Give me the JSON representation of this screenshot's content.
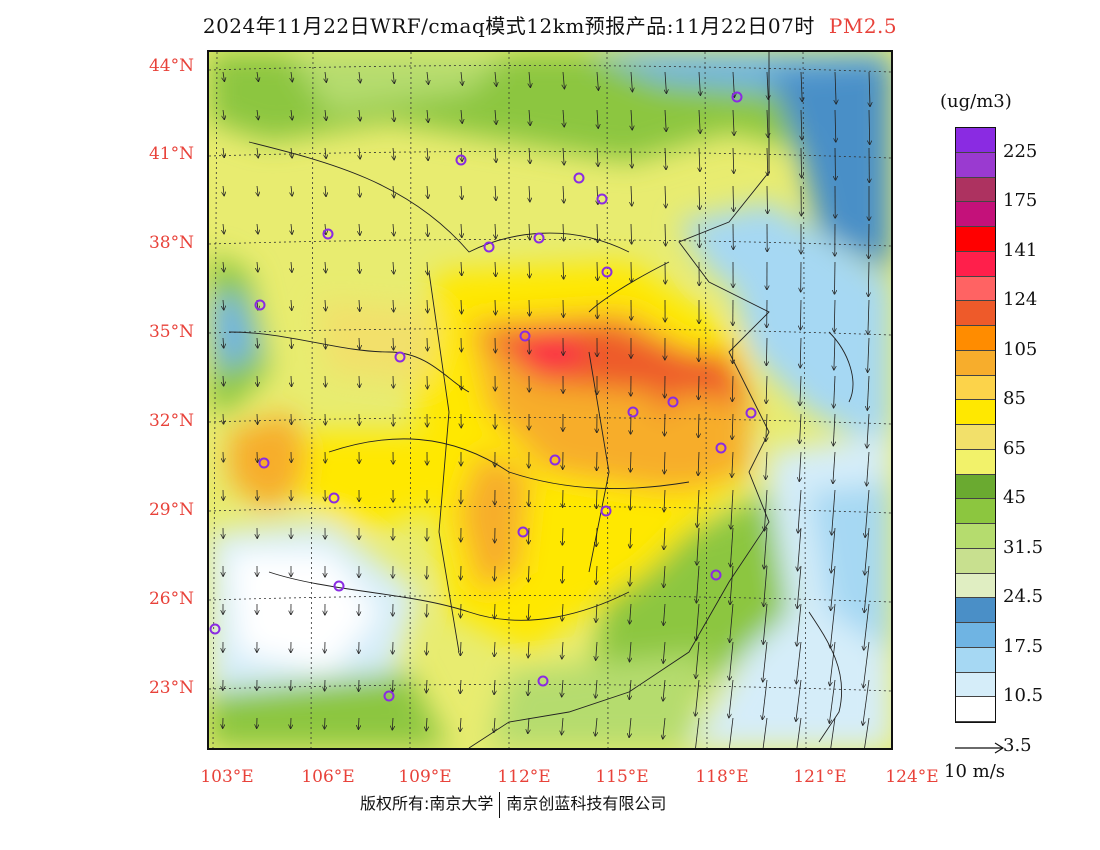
{
  "title": {
    "main": "2024年11月22日WRF/cmaq模式12km预报产品:11月22日07时",
    "species": "PM2.5"
  },
  "legend": {
    "unit": "(ug/m3)",
    "labels": [
      "225",
      "175",
      "141",
      "124",
      "105",
      "85",
      "65",
      "45",
      "31.5",
      "24.5",
      "17.5",
      "10.5",
      "3.5"
    ],
    "colors": [
      "#8a2be2",
      "#9a3ad0",
      "#ad3260",
      "#c4117a",
      "#ff0000",
      "#ff1f4b",
      "#ff6363",
      "#ee5a2a",
      "#ff8c00",
      "#f7ad2c",
      "#fcd34a",
      "#ffe800",
      "#f2e06a",
      "#f2f26a",
      "#6aaa30",
      "#8cc63f",
      "#b5dc6e",
      "#c8e08f",
      "#e0eec2",
      "#4a8fc7",
      "#6fb4e3",
      "#a6d8f3",
      "#d5edf9",
      "#ffffff"
    ]
  },
  "axes": {
    "lat_labels": [
      "44°N",
      "41°N",
      "38°N",
      "35°N",
      "32°N",
      "29°N",
      "26°N",
      "23°N"
    ],
    "lon_labels": [
      "103°E",
      "106°E",
      "109°E",
      "112°E",
      "115°E",
      "118°E",
      "121°E",
      "124°E"
    ]
  },
  "wind": {
    "scale_label": "10 m/s"
  },
  "cities_count_note": "",
  "copyright": {
    "left": "版权所有:南京大学",
    "right": "南京创蓝科技有限公司"
  }
}
